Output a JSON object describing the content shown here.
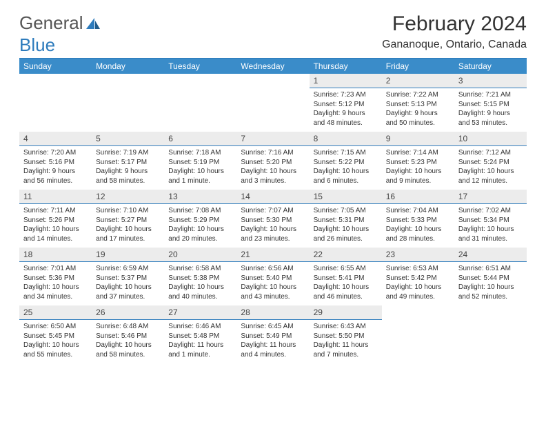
{
  "brand": {
    "general": "General",
    "blue": "Blue"
  },
  "title": "February 2024",
  "location": "Gananoque, Ontario, Canada",
  "colors": {
    "header_bg": "#3a8cc9",
    "header_text": "#ffffff",
    "rule": "#2d7bbc",
    "daynum_bg": "#ececec",
    "text": "#333333"
  },
  "day_names": [
    "Sunday",
    "Monday",
    "Tuesday",
    "Wednesday",
    "Thursday",
    "Friday",
    "Saturday"
  ],
  "weeks": [
    [
      null,
      null,
      null,
      null,
      {
        "n": "1",
        "sr": "Sunrise: 7:23 AM",
        "ss": "Sunset: 5:12 PM",
        "d1": "Daylight: 9 hours",
        "d2": "and 48 minutes."
      },
      {
        "n": "2",
        "sr": "Sunrise: 7:22 AM",
        "ss": "Sunset: 5:13 PM",
        "d1": "Daylight: 9 hours",
        "d2": "and 50 minutes."
      },
      {
        "n": "3",
        "sr": "Sunrise: 7:21 AM",
        "ss": "Sunset: 5:15 PM",
        "d1": "Daylight: 9 hours",
        "d2": "and 53 minutes."
      }
    ],
    [
      {
        "n": "4",
        "sr": "Sunrise: 7:20 AM",
        "ss": "Sunset: 5:16 PM",
        "d1": "Daylight: 9 hours",
        "d2": "and 56 minutes."
      },
      {
        "n": "5",
        "sr": "Sunrise: 7:19 AM",
        "ss": "Sunset: 5:17 PM",
        "d1": "Daylight: 9 hours",
        "d2": "and 58 minutes."
      },
      {
        "n": "6",
        "sr": "Sunrise: 7:18 AM",
        "ss": "Sunset: 5:19 PM",
        "d1": "Daylight: 10 hours",
        "d2": "and 1 minute."
      },
      {
        "n": "7",
        "sr": "Sunrise: 7:16 AM",
        "ss": "Sunset: 5:20 PM",
        "d1": "Daylight: 10 hours",
        "d2": "and 3 minutes."
      },
      {
        "n": "8",
        "sr": "Sunrise: 7:15 AM",
        "ss": "Sunset: 5:22 PM",
        "d1": "Daylight: 10 hours",
        "d2": "and 6 minutes."
      },
      {
        "n": "9",
        "sr": "Sunrise: 7:14 AM",
        "ss": "Sunset: 5:23 PM",
        "d1": "Daylight: 10 hours",
        "d2": "and 9 minutes."
      },
      {
        "n": "10",
        "sr": "Sunrise: 7:12 AM",
        "ss": "Sunset: 5:24 PM",
        "d1": "Daylight: 10 hours",
        "d2": "and 12 minutes."
      }
    ],
    [
      {
        "n": "11",
        "sr": "Sunrise: 7:11 AM",
        "ss": "Sunset: 5:26 PM",
        "d1": "Daylight: 10 hours",
        "d2": "and 14 minutes."
      },
      {
        "n": "12",
        "sr": "Sunrise: 7:10 AM",
        "ss": "Sunset: 5:27 PM",
        "d1": "Daylight: 10 hours",
        "d2": "and 17 minutes."
      },
      {
        "n": "13",
        "sr": "Sunrise: 7:08 AM",
        "ss": "Sunset: 5:29 PM",
        "d1": "Daylight: 10 hours",
        "d2": "and 20 minutes."
      },
      {
        "n": "14",
        "sr": "Sunrise: 7:07 AM",
        "ss": "Sunset: 5:30 PM",
        "d1": "Daylight: 10 hours",
        "d2": "and 23 minutes."
      },
      {
        "n": "15",
        "sr": "Sunrise: 7:05 AM",
        "ss": "Sunset: 5:31 PM",
        "d1": "Daylight: 10 hours",
        "d2": "and 26 minutes."
      },
      {
        "n": "16",
        "sr": "Sunrise: 7:04 AM",
        "ss": "Sunset: 5:33 PM",
        "d1": "Daylight: 10 hours",
        "d2": "and 28 minutes."
      },
      {
        "n": "17",
        "sr": "Sunrise: 7:02 AM",
        "ss": "Sunset: 5:34 PM",
        "d1": "Daylight: 10 hours",
        "d2": "and 31 minutes."
      }
    ],
    [
      {
        "n": "18",
        "sr": "Sunrise: 7:01 AM",
        "ss": "Sunset: 5:36 PM",
        "d1": "Daylight: 10 hours",
        "d2": "and 34 minutes."
      },
      {
        "n": "19",
        "sr": "Sunrise: 6:59 AM",
        "ss": "Sunset: 5:37 PM",
        "d1": "Daylight: 10 hours",
        "d2": "and 37 minutes."
      },
      {
        "n": "20",
        "sr": "Sunrise: 6:58 AM",
        "ss": "Sunset: 5:38 PM",
        "d1": "Daylight: 10 hours",
        "d2": "and 40 minutes."
      },
      {
        "n": "21",
        "sr": "Sunrise: 6:56 AM",
        "ss": "Sunset: 5:40 PM",
        "d1": "Daylight: 10 hours",
        "d2": "and 43 minutes."
      },
      {
        "n": "22",
        "sr": "Sunrise: 6:55 AM",
        "ss": "Sunset: 5:41 PM",
        "d1": "Daylight: 10 hours",
        "d2": "and 46 minutes."
      },
      {
        "n": "23",
        "sr": "Sunrise: 6:53 AM",
        "ss": "Sunset: 5:42 PM",
        "d1": "Daylight: 10 hours",
        "d2": "and 49 minutes."
      },
      {
        "n": "24",
        "sr": "Sunrise: 6:51 AM",
        "ss": "Sunset: 5:44 PM",
        "d1": "Daylight: 10 hours",
        "d2": "and 52 minutes."
      }
    ],
    [
      {
        "n": "25",
        "sr": "Sunrise: 6:50 AM",
        "ss": "Sunset: 5:45 PM",
        "d1": "Daylight: 10 hours",
        "d2": "and 55 minutes."
      },
      {
        "n": "26",
        "sr": "Sunrise: 6:48 AM",
        "ss": "Sunset: 5:46 PM",
        "d1": "Daylight: 10 hours",
        "d2": "and 58 minutes."
      },
      {
        "n": "27",
        "sr": "Sunrise: 6:46 AM",
        "ss": "Sunset: 5:48 PM",
        "d1": "Daylight: 11 hours",
        "d2": "and 1 minute."
      },
      {
        "n": "28",
        "sr": "Sunrise: 6:45 AM",
        "ss": "Sunset: 5:49 PM",
        "d1": "Daylight: 11 hours",
        "d2": "and 4 minutes."
      },
      {
        "n": "29",
        "sr": "Sunrise: 6:43 AM",
        "ss": "Sunset: 5:50 PM",
        "d1": "Daylight: 11 hours",
        "d2": "and 7 minutes."
      },
      null,
      null
    ]
  ]
}
